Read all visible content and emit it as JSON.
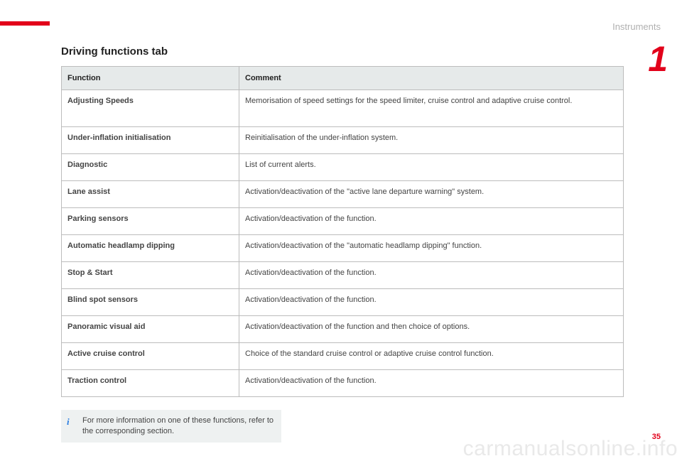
{
  "header": {
    "section": "Instruments",
    "chapter_number": "1",
    "page_number": "35"
  },
  "title": "Driving functions tab",
  "table": {
    "headers": {
      "col1": "Function",
      "col2": "Comment"
    },
    "rows": [
      {
        "fn": "Adjusting Speeds",
        "comment": "Memorisation of speed settings for the speed limiter, cruise control and adaptive cruise control.",
        "tall": true
      },
      {
        "fn": "Under-inflation initialisation",
        "comment": "Reinitialisation of the under-inflation system."
      },
      {
        "fn": "Diagnostic",
        "comment": "List of current alerts."
      },
      {
        "fn": "Lane assist",
        "comment": "Activation/deactivation of the \"active lane departure warning\" system."
      },
      {
        "fn": "Parking sensors",
        "comment": "Activation/deactivation of the function."
      },
      {
        "fn": "Automatic headlamp dipping",
        "comment": "Activation/deactivation of the \"automatic headlamp dipping\" function."
      },
      {
        "fn": "Stop & Start",
        "comment": "Activation/deactivation of the function."
      },
      {
        "fn": "Blind spot sensors",
        "comment": "Activation/deactivation of the function."
      },
      {
        "fn": "Panoramic visual aid",
        "comment": "Activation/deactivation of the function and then choice of options."
      },
      {
        "fn": "Active cruise control",
        "comment": "Choice of the standard cruise control or adaptive cruise control function."
      },
      {
        "fn": "Traction control",
        "comment": "Activation/deactivation of the function."
      }
    ]
  },
  "info_note": "For more information on one of these functions, refer to the corresponding section.",
  "watermark": "carmanualsonline.info",
  "colors": {
    "accent": "#e2001a",
    "header_bg": "#e6eaea",
    "border": "#bcbcbc",
    "info_bg": "#eef1f1",
    "info_icon": "#2a7de1",
    "watermark": "#e9e9e9"
  }
}
